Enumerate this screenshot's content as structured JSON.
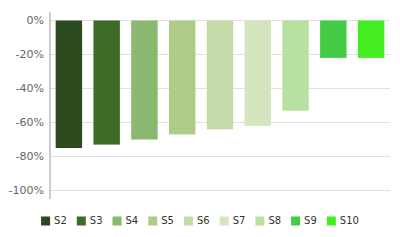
{
  "chart_data": {
    "type": "bar",
    "categories": [
      "S2",
      "S3",
      "S4",
      "S5",
      "S6",
      "S7",
      "S8",
      "S9",
      "S10"
    ],
    "values": [
      -75,
      -73,
      -70,
      -67,
      -64,
      -62,
      -53,
      -22,
      -22
    ],
    "colors": [
      "#2d4a1e",
      "#3d6b28",
      "#8ab870",
      "#aecb88",
      "#c5daa8",
      "#d5e5be",
      "#b8e0a0",
      "#44cc44",
      "#44ee22"
    ],
    "ylim": [
      -105,
      5
    ],
    "yticks": [
      {
        "value": 0,
        "label": "0%"
      },
      {
        "value": -20,
        "label": "-20%"
      },
      {
        "value": -40,
        "label": "-40%"
      },
      {
        "value": -60,
        "label": "-60%"
      },
      {
        "value": -80,
        "label": "-80%"
      },
      {
        "value": -100,
        "label": "-100%"
      }
    ],
    "grid": true,
    "legend": "bottom",
    "tick_labels": "y"
  }
}
